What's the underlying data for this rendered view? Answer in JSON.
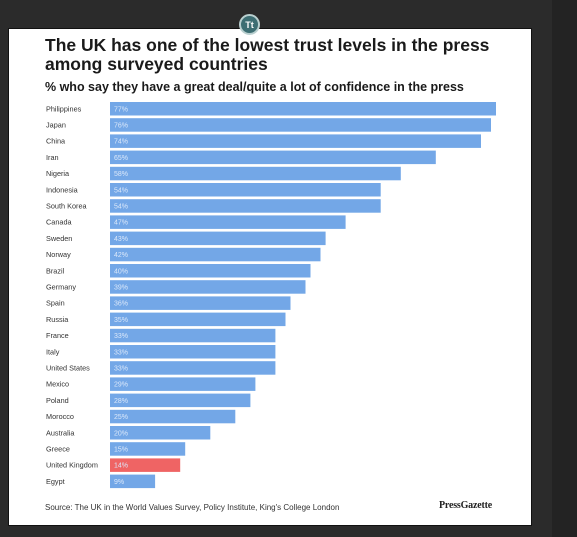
{
  "chart_data": {
    "type": "bar",
    "orientation": "horizontal",
    "title": "The UK has one of the lowest trust levels in the press among surveyed countries",
    "subtitle": "% who say they have a great deal/quite a lot of confidence in the press",
    "source": "Source: The UK in the World Values Survey, Policy Institute, King's College London",
    "brand": "PressGazette",
    "xlim": [
      0,
      77
    ],
    "grid": false,
    "categories": [
      "Philippines",
      "Japan",
      "China",
      "Iran",
      "Nigeria",
      "Indonesia",
      "South Korea",
      "Canada",
      "Sweden",
      "Norway",
      "Brazil",
      "Germany",
      "Spain",
      "Russia",
      "France",
      "Italy",
      "United States",
      "Mexico",
      "Poland",
      "Morocco",
      "Australia",
      "Greece",
      "United Kingdom",
      "Egypt"
    ],
    "values": [
      77,
      76,
      74,
      65,
      58,
      54,
      54,
      47,
      43,
      42,
      40,
      39,
      36,
      35,
      33,
      33,
      33,
      29,
      28,
      25,
      20,
      15,
      14,
      9
    ],
    "value_labels": [
      "77%",
      "76%",
      "74%",
      "65%",
      "58%",
      "54%",
      "54%",
      "47%",
      "43%",
      "42%",
      "40%",
      "39%",
      "36%",
      "35%",
      "33%",
      "33%",
      "33%",
      "29%",
      "28%",
      "25%",
      "20%",
      "15%",
      "14%",
      "9%"
    ],
    "highlight": "United Kingdom",
    "colors": {
      "bar": "#73a7e7",
      "highlight": "#ef6464",
      "label": "#333333",
      "value_text": "#dbe8fa"
    }
  },
  "overlay": {
    "badge_text": "Tt"
  }
}
